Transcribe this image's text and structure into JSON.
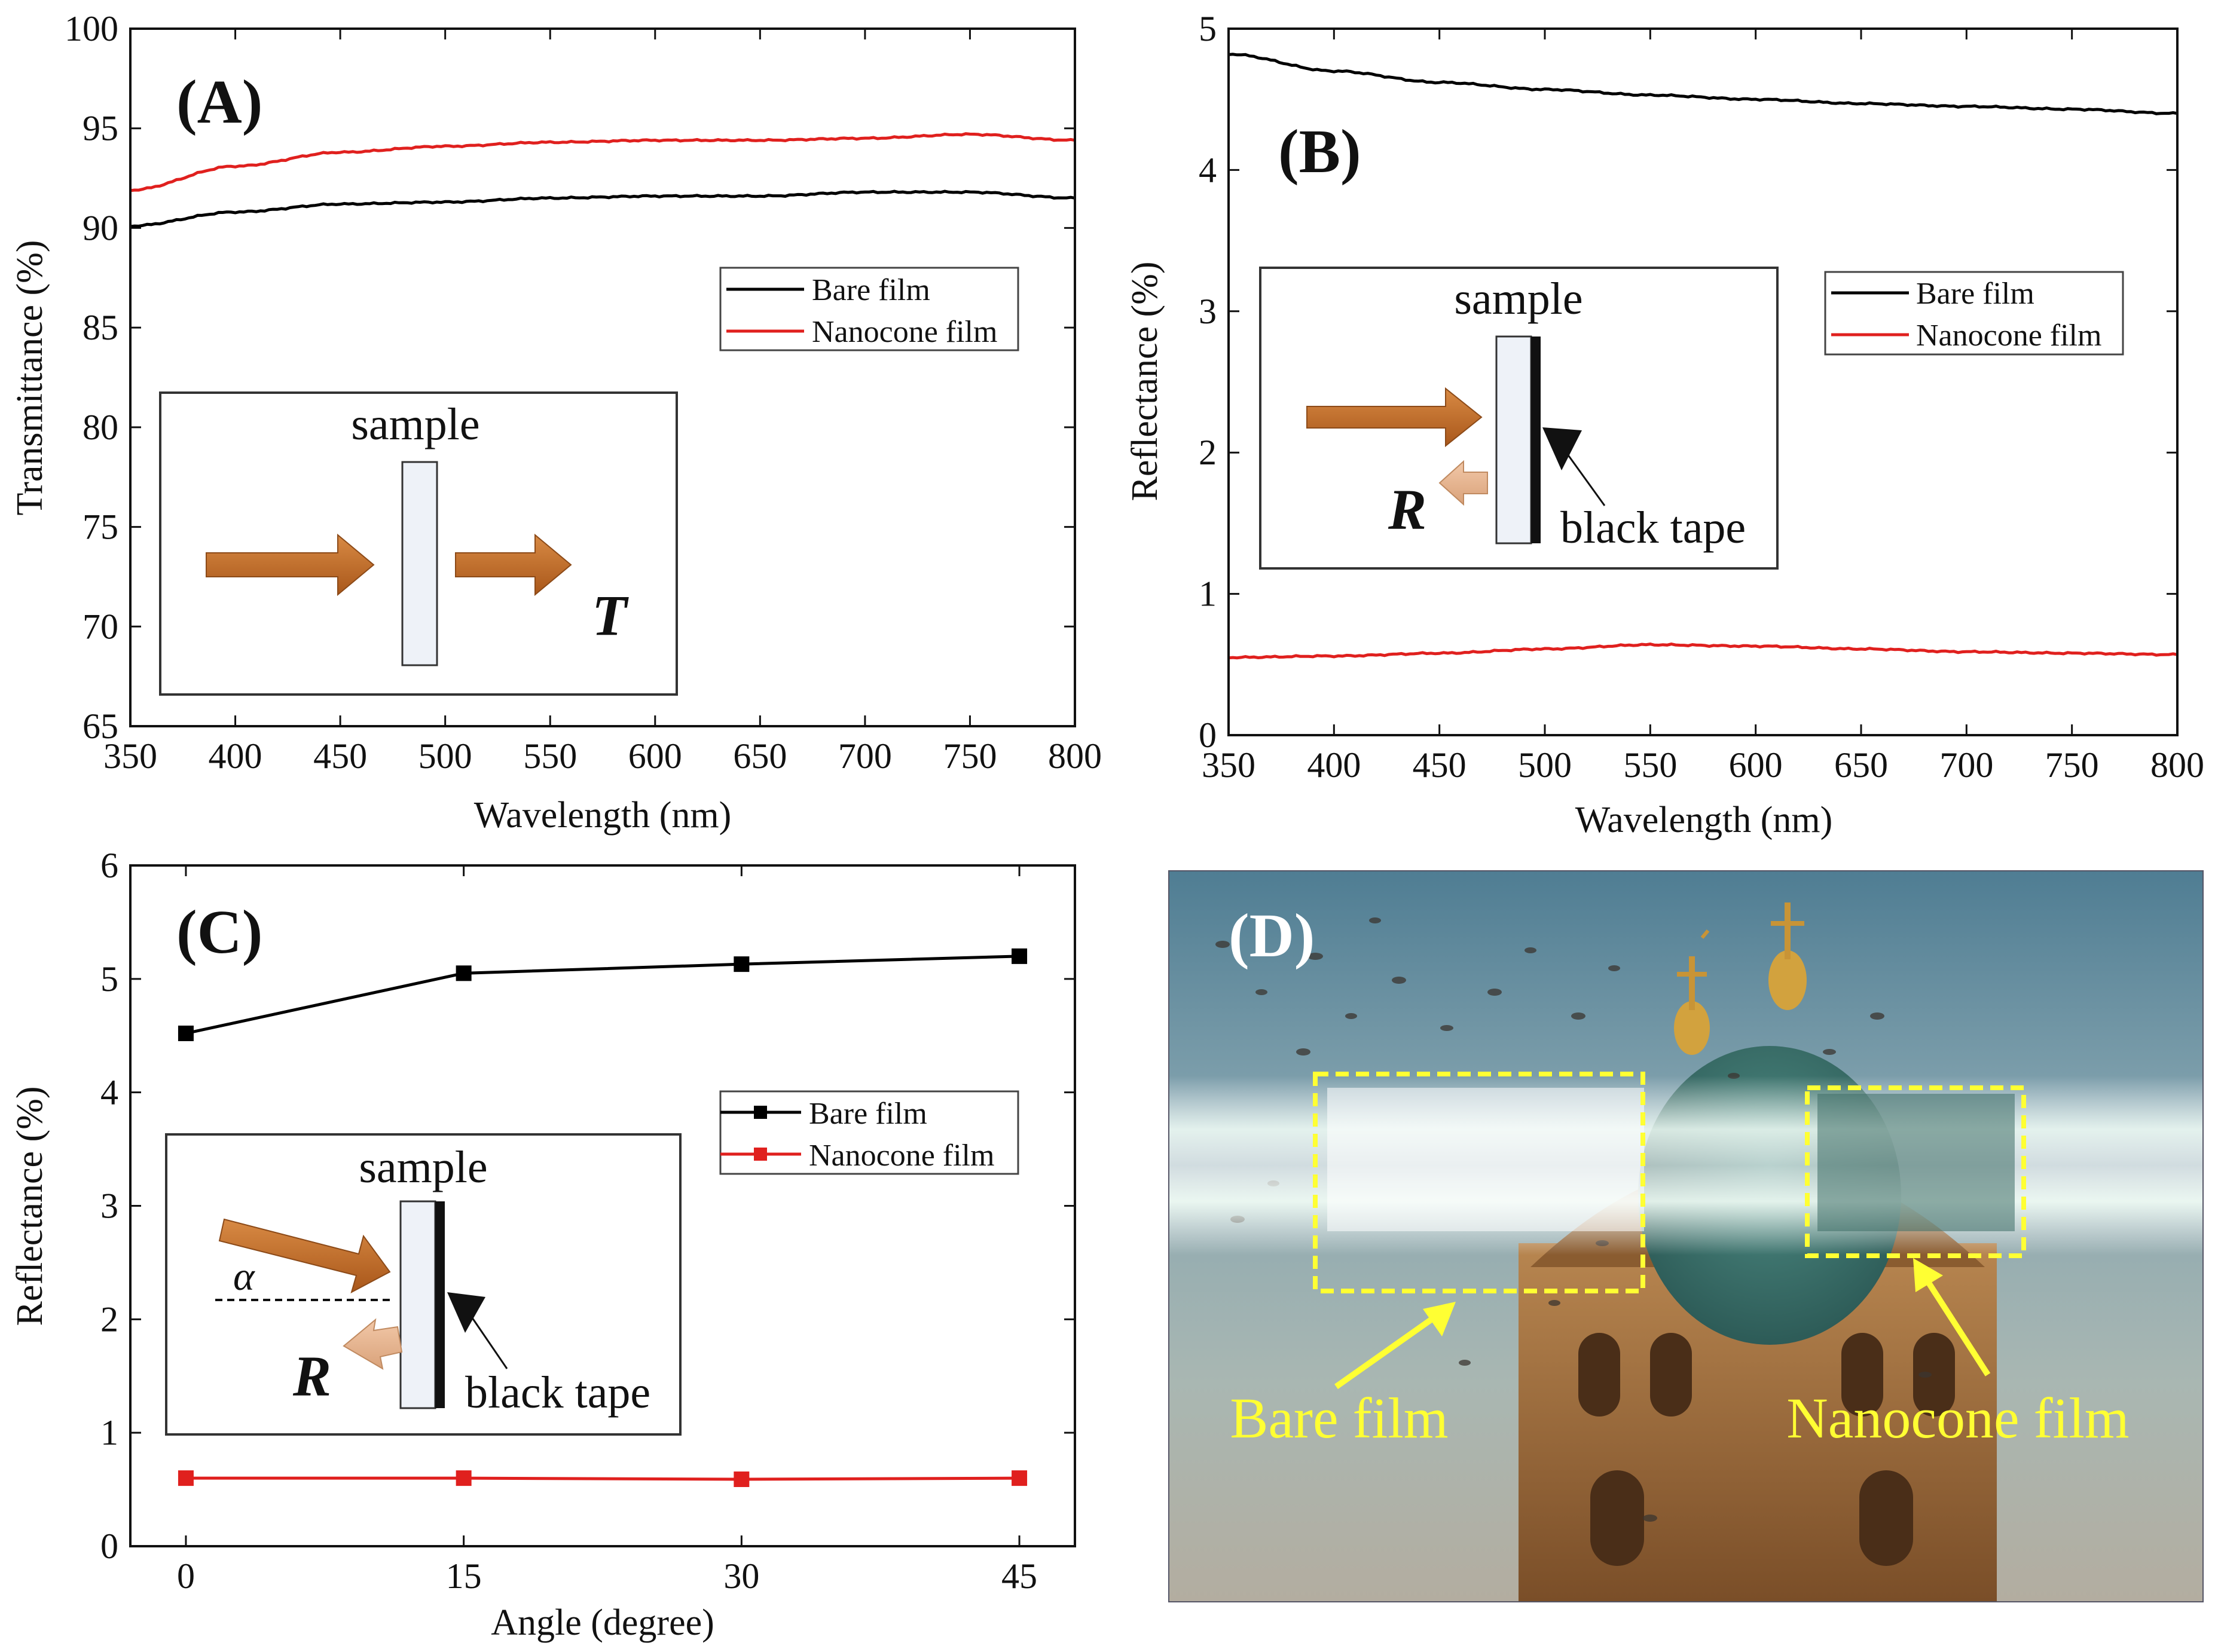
{
  "figure": {
    "panels": [
      {
        "id": "A",
        "label": "(A)",
        "xlabel": "Wavelength (nm)",
        "ylabel": "Transmittance (%)",
        "legend": [
          "Bare film",
          "Nanocone film"
        ],
        "inset": {
          "sample": "sample",
          "symbol": "T"
        }
      },
      {
        "id": "B",
        "label": "(B)",
        "xlabel": "Wavelength (nm)",
        "ylabel": "Reflectance (%)",
        "legend": [
          "Bare film",
          "Nanocone film"
        ],
        "inset": {
          "sample": "sample",
          "symbol": "R",
          "tape": "black tape"
        }
      },
      {
        "id": "C",
        "label": "(C)",
        "xlabel": "Angle (degree)",
        "ylabel": "Reflectance (%)",
        "legend": [
          "Bare film",
          "Nanocone film"
        ],
        "inset": {
          "sample": "sample",
          "symbol": "R",
          "tape": "black tape",
          "angle": "α"
        }
      },
      {
        "id": "D",
        "label": "(D)",
        "photo_labels": [
          "Bare film",
          "Nanocone film"
        ]
      }
    ]
  },
  "colors": {
    "bare": "#000000",
    "nanocone": "#e0201e",
    "photo_label": "#ffff33",
    "arrow": "#c06a22"
  },
  "chart_data": [
    {
      "type": "line",
      "title": "(A)",
      "xlabel": "Wavelength (nm)",
      "ylabel": "Transmittance (%)",
      "xlim": [
        350,
        800
      ],
      "ylim": [
        65,
        100
      ],
      "xticks": [
        350,
        400,
        450,
        500,
        550,
        600,
        650,
        700,
        750,
        800
      ],
      "yticks": [
        65,
        70,
        75,
        80,
        85,
        90,
        95,
        100
      ],
      "x": [
        350,
        400,
        450,
        500,
        550,
        600,
        650,
        700,
        750,
        800
      ],
      "series": [
        {
          "name": "Bare film",
          "values": [
            90.1,
            90.8,
            91.2,
            91.3,
            91.5,
            91.6,
            91.6,
            91.8,
            91.8,
            91.5
          ]
        },
        {
          "name": "Nanocone film",
          "values": [
            91.9,
            93.1,
            93.8,
            94.1,
            94.3,
            94.4,
            94.4,
            94.5,
            94.7,
            94.4
          ]
        }
      ],
      "legend_position": "upper-right"
    },
    {
      "type": "line",
      "title": "(B)",
      "xlabel": "Wavelength (nm)",
      "ylabel": "Reflectance (%)",
      "xlim": [
        350,
        800
      ],
      "ylim": [
        0,
        5
      ],
      "xticks": [
        350,
        400,
        450,
        500,
        550,
        600,
        650,
        700,
        750,
        800
      ],
      "yticks": [
        0,
        1,
        2,
        3,
        4,
        5
      ],
      "x": [
        350,
        400,
        450,
        500,
        550,
        600,
        650,
        700,
        750,
        800
      ],
      "series": [
        {
          "name": "Bare film",
          "values": [
            4.82,
            4.7,
            4.62,
            4.57,
            4.53,
            4.5,
            4.47,
            4.45,
            4.43,
            4.4
          ]
        },
        {
          "name": "Nanocone film",
          "values": [
            0.55,
            0.56,
            0.58,
            0.61,
            0.64,
            0.63,
            0.61,
            0.59,
            0.58,
            0.57
          ]
        }
      ],
      "legend_position": "upper-right"
    },
    {
      "type": "line",
      "title": "(C)",
      "xlabel": "Angle (degree)",
      "ylabel": "Reflectance (%)",
      "xlim": [
        -3,
        48
      ],
      "ylim": [
        0,
        6
      ],
      "xticks": [
        0,
        15,
        30,
        45
      ],
      "yticks": [
        0,
        1,
        2,
        3,
        4,
        5,
        6
      ],
      "x": [
        0,
        15,
        30,
        45
      ],
      "series": [
        {
          "name": "Bare film",
          "values": [
            4.52,
            5.05,
            5.13,
            5.2
          ]
        },
        {
          "name": "Nanocone film",
          "values": [
            0.6,
            0.6,
            0.59,
            0.6
          ]
        }
      ],
      "legend_position": "center-right"
    }
  ]
}
